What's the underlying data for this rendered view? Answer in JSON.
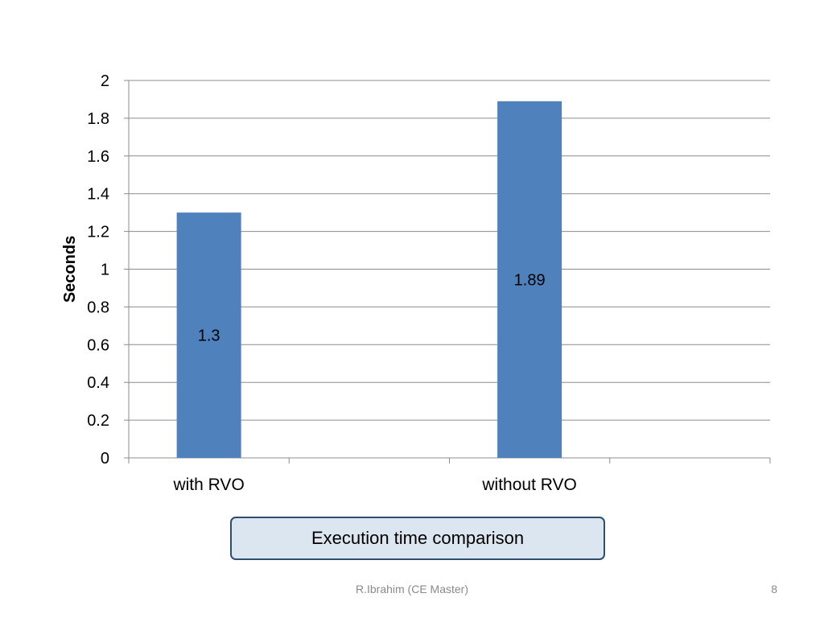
{
  "chart_data": {
    "type": "bar",
    "categories": [
      "with RVO",
      "without RVO"
    ],
    "values": [
      1.3,
      1.89
    ],
    "data_labels": [
      "1.3",
      "1.89"
    ],
    "title": "",
    "xlabel": "",
    "ylabel": "Seconds",
    "ylim": [
      0,
      2
    ],
    "yticks": [
      "0",
      "0.2",
      "0.4",
      "0.6",
      "0.8",
      "1",
      "1.2",
      "1.4",
      "1.6",
      "1.8",
      "2"
    ],
    "grid": true,
    "legend": "none",
    "bar_color": "#4f81bd"
  },
  "caption": {
    "text": "Execution time comparison",
    "background": "#dce6f0",
    "border_color": "#2f4d6f"
  },
  "footer": {
    "text": "R.Ibrahim (CE Master)",
    "page_number": "8"
  }
}
